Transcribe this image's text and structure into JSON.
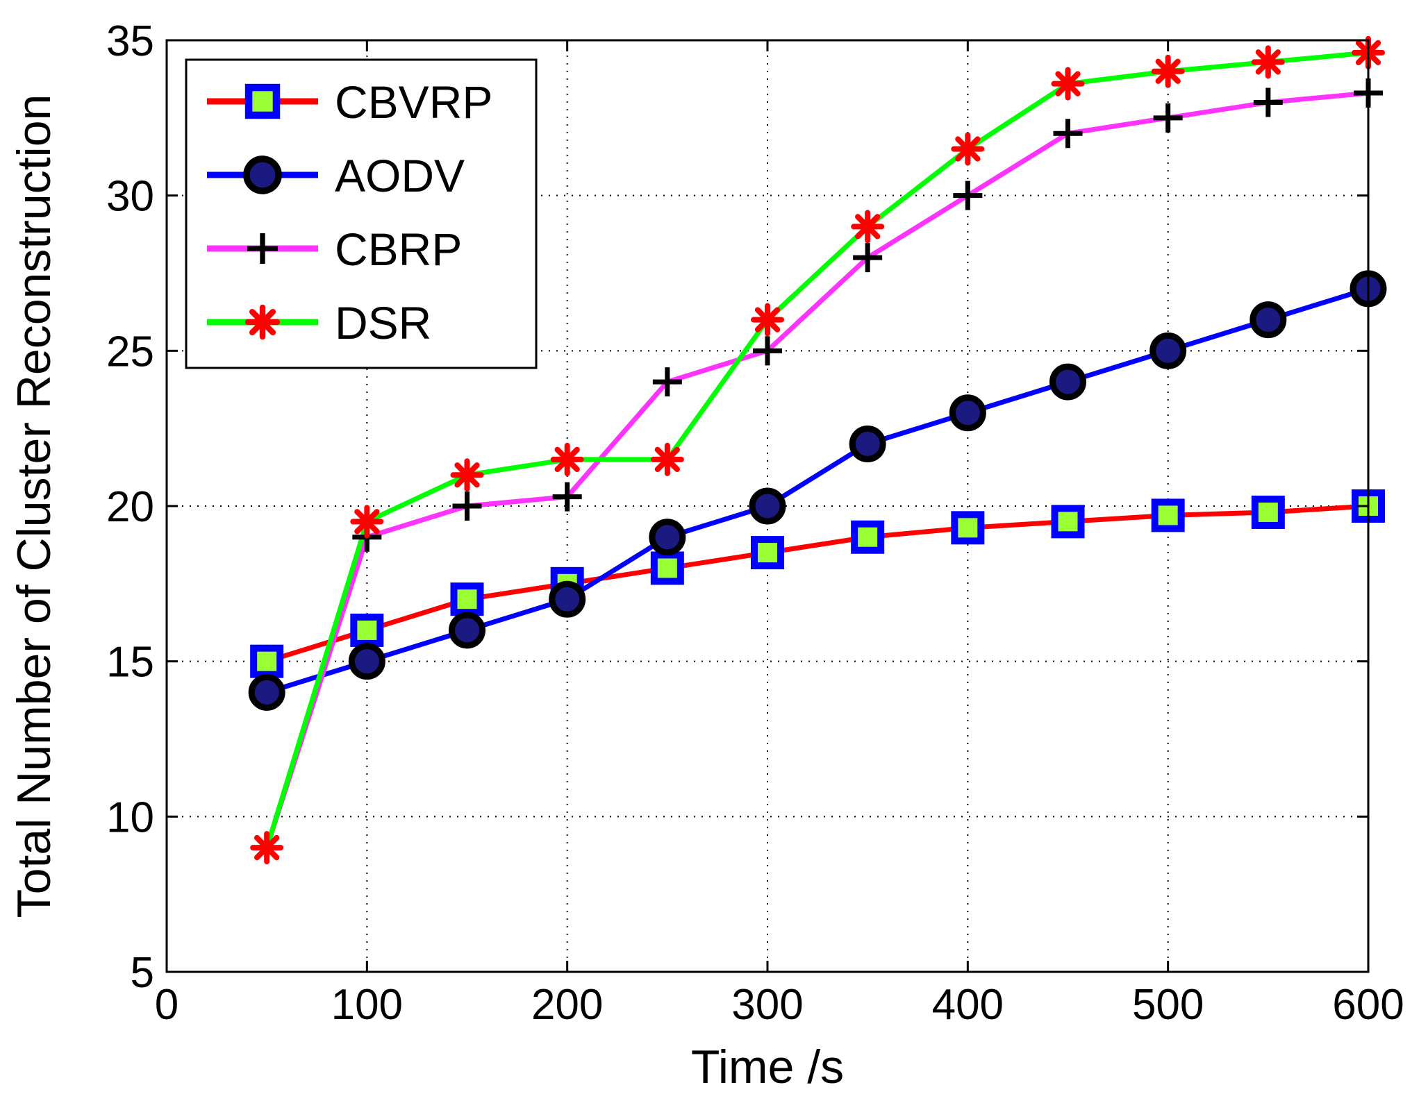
{
  "chart_data": {
    "type": "line",
    "xlabel": "Time /s",
    "ylabel": "Total Number of Cluster Reconstruction",
    "xlim": [
      0,
      600
    ],
    "ylim": [
      5,
      35
    ],
    "xticks": [
      0,
      100,
      200,
      300,
      400,
      500,
      600
    ],
    "yticks": [
      5,
      10,
      15,
      20,
      25,
      30,
      35
    ],
    "grid": true,
    "legend_position": "top-left",
    "x": [
      50,
      100,
      150,
      200,
      250,
      300,
      350,
      400,
      450,
      500,
      550,
      600
    ],
    "series": [
      {
        "name": "CBVRP",
        "values": [
          15,
          16,
          17,
          17.5,
          18,
          18.5,
          19,
          19.3,
          19.5,
          19.7,
          19.8,
          20
        ],
        "line_color": "#ff0000",
        "marker": "square",
        "marker_edge": "#0000ff",
        "marker_face": "#99ff33"
      },
      {
        "name": "AODV",
        "values": [
          14,
          15,
          16,
          17,
          19,
          20,
          22,
          23,
          24,
          25,
          26,
          27
        ],
        "line_color": "#0000ff",
        "marker": "circle",
        "marker_edge": "#000000",
        "marker_face": "#1a1a80"
      },
      {
        "name": "CBRP",
        "values": [
          9,
          19,
          20,
          20.3,
          24,
          25,
          28,
          30,
          32,
          32.5,
          33,
          33.3
        ],
        "line_color": "#ff33ff",
        "marker": "plus",
        "marker_edge": "#000000",
        "marker_face": "none"
      },
      {
        "name": "DSR",
        "values": [
          9,
          19.5,
          21,
          21.5,
          21.5,
          26,
          29,
          31.5,
          33.6,
          34,
          34.3,
          34.6
        ],
        "line_color": "#00ff00",
        "marker": "star",
        "marker_edge": "#ff0000",
        "marker_face": "#ff0000"
      }
    ]
  }
}
